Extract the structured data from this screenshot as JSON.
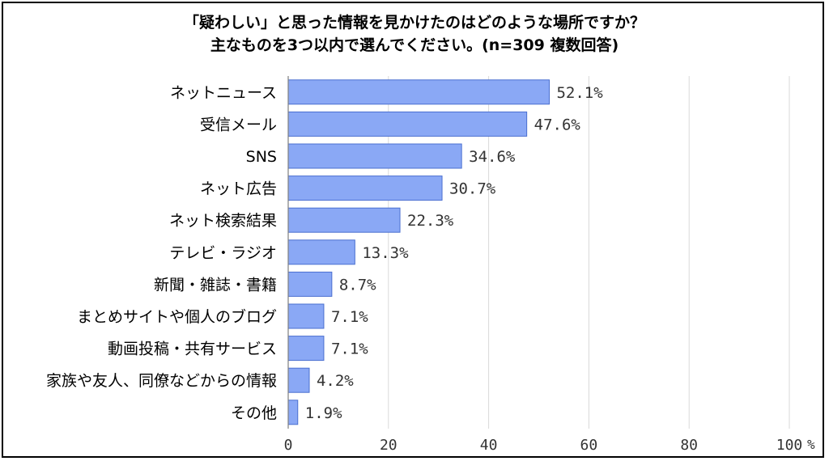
{
  "title": {
    "line1": "「疑わしい」と思った情報を見かけたのはどのような場所ですか？",
    "line2": "主なものを3つ以内で選んでください。(n=309 複数回答)"
  },
  "colors": {
    "bar": "#8aa8f5",
    "bar_stroke": "#4a6fd0",
    "grid": "#d9d9d9",
    "axis": "#7f7f7f"
  },
  "chart_data": {
    "type": "bar",
    "orientation": "horizontal",
    "title": "「疑わしい」と思った情報を見かけたのはどのような場所ですか？ 主なものを3つ以内で選んでください。(n=309 複数回答)",
    "categories": [
      "ネットニュース",
      "受信メール",
      "SNS",
      "ネット広告",
      "ネット検索結果",
      "テレビ・ラジオ",
      "新聞・雑誌・書籍",
      "まとめサイトや個人のブログ",
      "動画投稿・共有サービス",
      "家族や友人、同僚などからの情報",
      "その他"
    ],
    "values": [
      52.1,
      47.6,
      34.6,
      30.7,
      22.3,
      13.3,
      8.7,
      7.1,
      7.1,
      4.2,
      1.9
    ],
    "value_labels": [
      "52.1%",
      "47.6%",
      "34.6%",
      "30.7%",
      "22.3%",
      "13.3%",
      "8.7%",
      "7.1%",
      "7.1%",
      "4.2%",
      "1.9%"
    ],
    "xlim": [
      0,
      100
    ],
    "xticks": [
      0,
      20,
      40,
      60,
      80,
      100
    ],
    "xtick_labels": [
      "0",
      "20",
      "40",
      "60",
      "80",
      "100"
    ],
    "xunit": "%",
    "grid": true,
    "legend": "none"
  }
}
